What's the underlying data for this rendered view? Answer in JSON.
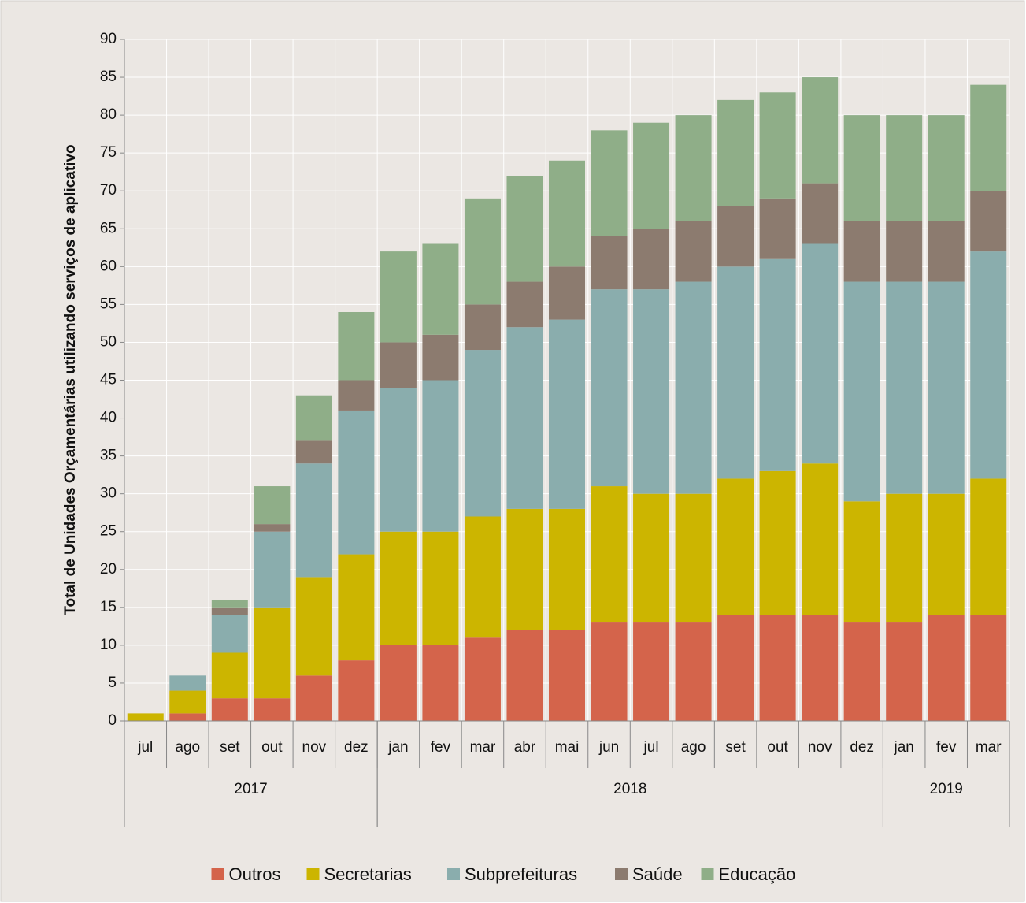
{
  "chart_data": {
    "type": "stacked-bar",
    "y_axis_label": "Total de Unidades Orçamentárias utilizando serviços de aplicativo",
    "categories": [
      "jul",
      "ago",
      "set",
      "out",
      "nov",
      "dez",
      "jan",
      "fev",
      "mar",
      "abr",
      "mai",
      "jun",
      "jul",
      "ago",
      "set",
      "out",
      "nov",
      "dez",
      "jan",
      "fev",
      "mar"
    ],
    "category_groups": [
      {
        "label": "2017",
        "size": 6
      },
      {
        "label": "2018",
        "size": 12
      },
      {
        "label": "2019",
        "size": 3
      }
    ],
    "series": [
      {
        "name": "Outros",
        "color": "#d4644b",
        "values": [
          0,
          1,
          3,
          3,
          6,
          8,
          10,
          10,
          11,
          12,
          12,
          13,
          13,
          13,
          14,
          14,
          14,
          13,
          13,
          14,
          14
        ]
      },
      {
        "name": "Secretarias",
        "color": "#ccb500",
        "values": [
          1,
          3,
          6,
          12,
          13,
          14,
          15,
          15,
          16,
          16,
          16,
          18,
          17,
          17,
          18,
          19,
          20,
          16,
          17,
          16,
          18
        ]
      },
      {
        "name": "Subprefeituras",
        "color": "#8aadad",
        "values": [
          0,
          2,
          5,
          10,
          15,
          19,
          19,
          20,
          22,
          24,
          25,
          26,
          27,
          28,
          28,
          28,
          29,
          29,
          28,
          28,
          30
        ]
      },
      {
        "name": "Saúde",
        "color": "#8c7b6f",
        "values": [
          0,
          0,
          1,
          1,
          3,
          4,
          6,
          6,
          6,
          6,
          7,
          7,
          8,
          8,
          8,
          8,
          8,
          8,
          8,
          8,
          8
        ]
      },
      {
        "name": "Educação",
        "color": "#8fae88",
        "values": [
          0,
          0,
          1,
          5,
          6,
          9,
          12,
          12,
          14,
          14,
          14,
          14,
          14,
          14,
          14,
          14,
          14,
          14,
          14,
          14,
          14
        ]
      }
    ],
    "ylim": [
      0,
      90
    ],
    "yticks": [
      0,
      5,
      10,
      15,
      20,
      25,
      30,
      35,
      40,
      45,
      50,
      55,
      60,
      65,
      70,
      75,
      80,
      85,
      90
    ],
    "grid": true,
    "legend": "bottom"
  }
}
